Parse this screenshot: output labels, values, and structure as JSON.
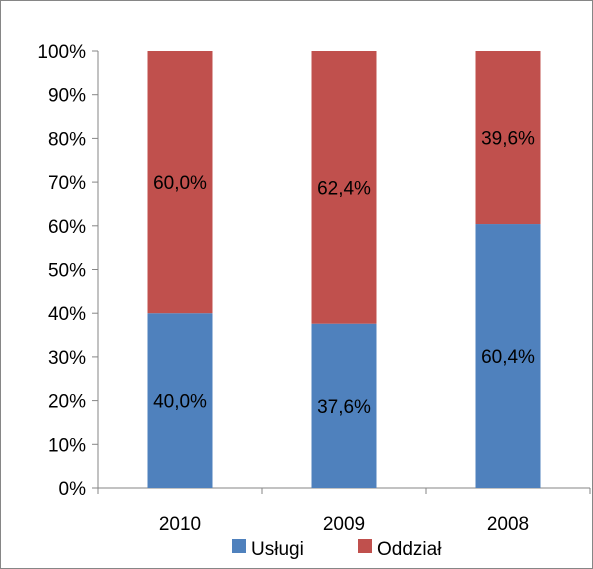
{
  "chart_data": {
    "type": "bar",
    "stacked": true,
    "percent_stacked": true,
    "categories": [
      "2010",
      "2009",
      "2008"
    ],
    "series": [
      {
        "name": "Usługi",
        "values": [
          40.0,
          37.6,
          60.4
        ],
        "labels": [
          "40,0%",
          "37,6%",
          "60,4%"
        ],
        "color": "#4f81bd"
      },
      {
        "name": "Oddział",
        "values": [
          60.0,
          62.4,
          39.6
        ],
        "labels": [
          "60,0%",
          "62,4%",
          "39,6%"
        ],
        "color": "#c0504d"
      }
    ],
    "ylim": [
      0,
      100
    ],
    "y_ticks": [
      "0%",
      "10%",
      "20%",
      "30%",
      "40%",
      "50%",
      "60%",
      "70%",
      "80%",
      "90%",
      "100%"
    ],
    "grid": false,
    "legend": "bottom",
    "title": "",
    "xlabel": "",
    "ylabel": ""
  }
}
